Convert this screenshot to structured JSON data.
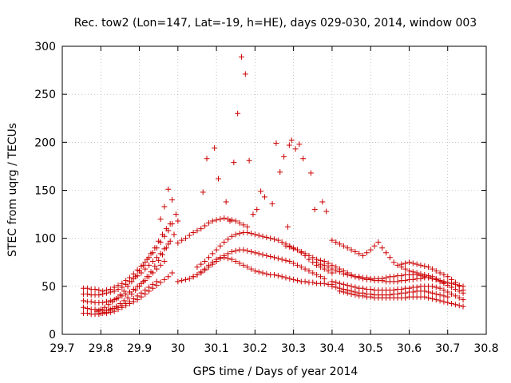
{
  "chart_data": {
    "type": "scatter",
    "title": "Rec. tow2 (Lon=147, Lat=-19, h=HE), days 029-030, 2014, window 003",
    "xlabel": "GPS time / Days of year 2014",
    "ylabel": "STEC from uqrg / TECUs",
    "xlim": [
      29.7,
      30.8
    ],
    "ylim": [
      0,
      300
    ],
    "x_ticks": [
      29.7,
      29.8,
      29.9,
      30,
      30.1,
      30.2,
      30.3,
      30.4,
      30.5,
      30.6,
      30.7,
      30.8
    ],
    "x_tick_labels": [
      "29.7",
      "29.8",
      "29.9",
      "30",
      "30.1",
      "30.2",
      "30.3",
      "30.4",
      "30.5",
      "30.6",
      "30.7",
      "30.8"
    ],
    "y_ticks": [
      0,
      50,
      100,
      150,
      200,
      250,
      300
    ],
    "y_tick_labels": [
      "0",
      "50",
      "100",
      "150",
      "200",
      "250",
      "300"
    ],
    "grid": true,
    "marker": "plus",
    "color": "#cc0000",
    "series": [
      {
        "name": "STEC",
        "x": [
          29.755,
          29.765,
          29.775,
          29.785,
          29.795,
          29.805,
          29.815,
          29.825,
          29.835,
          29.845,
          29.855,
          29.865,
          29.875,
          29.885,
          29.895,
          29.905,
          29.915,
          29.925,
          29.935,
          29.945,
          29.955,
          29.965,
          29.975,
          29.985,
          29.755,
          29.765,
          29.775,
          29.785,
          29.795,
          29.805,
          29.815,
          29.825,
          29.835,
          29.845,
          29.855,
          29.865,
          29.875,
          29.885,
          29.895,
          29.905,
          29.915,
          29.925,
          29.935,
          29.945,
          29.955,
          29.965,
          29.975,
          29.755,
          29.765,
          29.775,
          29.785,
          29.795,
          29.805,
          29.815,
          29.825,
          29.835,
          29.845,
          29.855,
          29.865,
          29.875,
          29.885,
          29.895,
          29.905,
          29.915,
          29.925,
          29.935,
          29.945,
          29.955,
          29.965,
          29.755,
          29.765,
          29.775,
          29.785,
          29.795,
          29.805,
          29.815,
          29.825,
          29.835,
          29.845,
          29.855,
          29.865,
          29.875,
          29.885,
          29.895,
          29.905,
          29.915,
          29.925,
          29.935,
          29.945,
          29.755,
          29.765,
          29.775,
          29.785,
          29.795,
          29.805,
          29.815,
          29.825,
          29.835,
          29.845,
          29.855,
          29.865,
          29.875,
          29.885,
          29.895,
          29.905,
          29.915,
          29.925,
          29.935,
          29.945,
          29.955,
          29.965,
          29.975,
          29.985,
          29.79,
          29.8,
          29.81,
          29.82,
          29.83,
          29.84,
          29.85,
          29.86,
          29.87,
          29.88,
          29.89,
          29.9,
          29.91,
          29.92,
          29.93,
          29.94,
          29.95,
          29.96,
          29.97,
          29.98,
          29.8,
          29.81,
          29.82,
          29.83,
          29.84,
          29.85,
          29.86,
          29.87,
          29.88,
          29.89,
          29.9,
          29.91,
          29.92,
          29.93,
          29.94,
          29.95,
          29.96,
          29.97,
          29.98,
          29.99,
          29.955,
          29.965,
          29.975,
          29.985,
          29.995,
          30.0,
          30.0,
          30.01,
          30.02,
          30.03,
          30.04,
          30.05,
          30.06,
          30.07,
          30.08,
          30.09,
          30.1,
          30.11,
          30.12,
          30.13,
          30.14,
          30.15,
          30.16,
          30.17,
          30.18,
          30.19,
          30.2,
          30.21,
          30.22,
          30.23,
          30.24,
          30.25,
          30.26,
          30.27,
          30.28,
          30.29,
          30.3,
          30.31,
          30.32,
          30.33,
          30.34,
          30.35,
          30.36,
          30.37,
          30.38,
          30.39,
          30.4,
          30.04,
          30.05,
          30.06,
          30.07,
          30.08,
          30.09,
          30.1,
          30.11,
          30.12,
          30.13,
          30.14,
          30.15,
          30.16,
          30.17,
          30.18,
          30.19,
          30.2,
          30.21,
          30.22,
          30.23,
          30.24,
          30.25,
          30.26,
          30.27,
          30.28,
          30.29,
          30.3,
          30.31,
          30.32,
          30.33,
          30.34,
          30.35,
          30.36,
          30.37,
          30.38,
          30.05,
          30.06,
          30.07,
          30.08,
          30.09,
          30.1,
          30.11,
          30.12,
          30.13,
          30.14,
          30.15,
          30.16,
          30.17,
          30.18,
          30.19,
          30.2,
          30.21,
          30.22,
          30.23,
          30.24,
          30.25,
          30.26,
          30.27,
          30.28,
          30.29,
          30.3,
          30.31,
          30.32,
          30.33,
          30.34,
          30.35,
          30.36,
          30.37,
          30.38,
          30.39,
          30.4,
          30.0,
          30.01,
          30.02,
          30.03,
          30.04,
          30.05,
          30.06,
          30.07,
          30.08,
          30.09,
          30.1,
          30.11,
          30.12,
          30.13,
          30.14,
          30.15,
          30.16,
          30.17,
          30.18,
          30.065,
          30.075,
          30.095,
          30.105,
          30.125,
          30.135,
          30.145,
          30.155,
          30.165,
          30.175,
          30.185,
          30.195,
          30.205,
          30.215,
          30.225,
          30.245,
          30.255,
          30.265,
          30.275,
          30.285,
          30.289,
          30.295,
          30.305,
          30.315,
          30.325,
          30.345,
          30.355,
          30.375,
          30.385,
          30.28,
          30.29,
          30.3,
          30.31,
          30.32,
          30.33,
          30.34,
          30.35,
          30.36,
          30.37,
          30.38,
          30.39,
          30.4,
          30.41,
          30.42,
          30.43,
          30.44,
          30.45,
          30.46,
          30.47,
          30.48,
          30.49,
          30.5,
          30.51,
          30.52,
          30.53,
          30.54,
          30.55,
          30.56,
          30.57,
          30.58,
          30.59,
          30.6,
          30.61,
          30.62,
          30.63,
          30.64,
          30.65,
          30.66,
          30.67,
          30.68,
          30.69,
          30.7,
          30.71,
          30.72,
          30.73,
          30.74,
          30.36,
          30.37,
          30.38,
          30.39,
          30.4,
          30.41,
          30.42,
          30.43,
          30.44,
          30.45,
          30.46,
          30.47,
          30.48,
          30.49,
          30.5,
          30.51,
          30.52,
          30.53,
          30.54,
          30.55,
          30.56,
          30.57,
          30.58,
          30.59,
          30.6,
          30.61,
          30.62,
          30.63,
          30.64,
          30.65,
          30.66,
          30.67,
          30.68,
          30.69,
          30.7,
          30.71,
          30.72,
          30.73,
          30.74,
          30.4,
          30.41,
          30.42,
          30.43,
          30.44,
          30.45,
          30.46,
          30.47,
          30.48,
          30.49,
          30.5,
          30.51,
          30.52,
          30.53,
          30.54,
          30.55,
          30.56,
          30.57,
          30.58,
          30.59,
          30.6,
          30.61,
          30.62,
          30.63,
          30.64,
          30.65,
          30.66,
          30.67,
          30.68,
          30.69,
          30.7,
          30.71,
          30.72,
          30.73,
          30.74,
          30.4,
          30.41,
          30.42,
          30.43,
          30.44,
          30.45,
          30.46,
          30.47,
          30.48,
          30.49,
          30.5,
          30.51,
          30.52,
          30.53,
          30.54,
          30.55,
          30.56,
          30.57,
          30.58,
          30.59,
          30.6,
          30.61,
          30.62,
          30.63,
          30.64,
          30.65,
          30.66,
          30.67,
          30.68,
          30.69,
          30.7,
          30.42,
          30.43,
          30.44,
          30.45,
          30.46,
          30.47,
          30.48,
          30.49,
          30.5,
          30.51,
          30.52,
          30.53,
          30.54,
          30.55,
          30.56,
          30.57,
          30.58,
          30.59,
          30.6,
          30.61,
          30.62,
          30.63,
          30.64,
          30.65,
          30.66,
          30.67,
          30.68,
          30.69,
          30.7,
          30.71,
          30.72,
          30.73,
          30.74,
          30.58,
          30.59,
          30.6,
          30.61,
          30.62,
          30.63,
          30.64,
          30.65,
          30.66,
          30.67,
          30.68,
          30.69,
          30.7,
          30.71,
          30.72,
          30.73,
          30.74,
          30.4,
          30.41,
          30.42,
          30.43,
          30.44,
          30.45,
          30.46,
          30.47,
          30.48,
          30.49,
          30.5,
          30.51,
          30.52,
          30.53,
          30.54,
          30.55,
          30.56,
          30.57,
          30.58,
          30.59,
          30.6,
          30.61,
          30.62,
          30.63,
          30.64,
          30.65,
          30.66,
          30.67,
          30.68,
          30.69
        ],
        "y": [
          48,
          48,
          47,
          47,
          46,
          45,
          46,
          47,
          49,
          51,
          53,
          56,
          59,
          63,
          67,
          71,
          75,
          80,
          85,
          90,
          96,
          102,
          108,
          115,
          42,
          42,
          41,
          41,
          41,
          42,
          43,
          44,
          45,
          47,
          49,
          52,
          55,
          58,
          61,
          64,
          68,
          72,
          76,
          80,
          84,
          89,
          94,
          35,
          34,
          34,
          33,
          33,
          33,
          34,
          35,
          36,
          38,
          40,
          42,
          44,
          47,
          50,
          53,
          56,
          60,
          64,
          68,
          72,
          76,
          28,
          27,
          26,
          26,
          25,
          25,
          25,
          26,
          27,
          28,
          30,
          32,
          34,
          37,
          40,
          43,
          46,
          49,
          52,
          55,
          22,
          22,
          21,
          21,
          21,
          22,
          22,
          23,
          24,
          26,
          28,
          30,
          32,
          34,
          36,
          39,
          42,
          45,
          48,
          51,
          54,
          57,
          60,
          64,
          24,
          26,
          28,
          31,
          34,
          37,
          41,
          45,
          50,
          55,
          60,
          66,
          72,
          78,
          84,
          90,
          97,
          104,
          110,
          115,
          22,
          23,
          25,
          27,
          29,
          32,
          35,
          38,
          42,
          46,
          50,
          55,
          60,
          65,
          71,
          77,
          83,
          90,
          97,
          104,
          120,
          133,
          151,
          140,
          125,
          118,
          55,
          56,
          57,
          58,
          60,
          62,
          65,
          68,
          72,
          75,
          78,
          80,
          80,
          79,
          78,
          76,
          74,
          72,
          70,
          68,
          66,
          65,
          64,
          63,
          62,
          62,
          61,
          60,
          59,
          58,
          57,
          56,
          55,
          55,
          54,
          54,
          53,
          53,
          53,
          52,
          52,
          60,
          62,
          64,
          67,
          70,
          73,
          76,
          79,
          82,
          84,
          86,
          87,
          88,
          88,
          87,
          86,
          85,
          84,
          83,
          82,
          81,
          80,
          79,
          78,
          77,
          76,
          74,
          72,
          70,
          68,
          66,
          64,
          62,
          60,
          58,
          70,
          73,
          76,
          80,
          84,
          88,
          92,
          96,
          99,
          102,
          104,
          105,
          106,
          106,
          105,
          104,
          103,
          102,
          101,
          100,
          99,
          98,
          96,
          94,
          92,
          90,
          88,
          85,
          82,
          78,
          75,
          72,
          70,
          68,
          66,
          64,
          95,
          98,
          100,
          103,
          106,
          108,
          110,
          113,
          116,
          118,
          119,
          120,
          121,
          120,
          119,
          118,
          116,
          114,
          112,
          148,
          183,
          194,
          162,
          138,
          118,
          179,
          230,
          289,
          271,
          181,
          125,
          130,
          149,
          143,
          136,
          199,
          169,
          185,
          112,
          197,
          202,
          193,
          198,
          183,
          168,
          130,
          138,
          128,
          92,
          91,
          89,
          88,
          86,
          84,
          82,
          80,
          78,
          77,
          76,
          74,
          72,
          70,
          68,
          66,
          64,
          62,
          60,
          60,
          59,
          59,
          58,
          58,
          58,
          58,
          59,
          60,
          60,
          61,
          61,
          62,
          62,
          62,
          62,
          61,
          60,
          59,
          58,
          57,
          56,
          55,
          54,
          53,
          52,
          51,
          50,
          75,
          73,
          72,
          70,
          68,
          66,
          65,
          63,
          62,
          61,
          60,
          59,
          58,
          57,
          57,
          56,
          56,
          56,
          55,
          55,
          55,
          55,
          56,
          56,
          57,
          57,
          58,
          58,
          59,
          59,
          58,
          57,
          55,
          53,
          51,
          49,
          47,
          45,
          43,
          55,
          54,
          53,
          52,
          51,
          50,
          49,
          48,
          48,
          47,
          47,
          46,
          46,
          46,
          46,
          46,
          46,
          47,
          47,
          48,
          48,
          49,
          49,
          50,
          50,
          50,
          50,
          49,
          48,
          46,
          44,
          42,
          40,
          38,
          36,
          50,
          49,
          48,
          47,
          46,
          45,
          44,
          43,
          43,
          42,
          42,
          41,
          41,
          41,
          41,
          41,
          42,
          42,
          43,
          43,
          44,
          44,
          45,
          45,
          45,
          44,
          43,
          42,
          41,
          40,
          39,
          45,
          44,
          43,
          42,
          41,
          40,
          40,
          39,
          39,
          38,
          38,
          38,
          38,
          38,
          38,
          38,
          38,
          38,
          39,
          39,
          39,
          39,
          39,
          38,
          37,
          36,
          35,
          34,
          33,
          32,
          31,
          30,
          29,
          73,
          74,
          75,
          74,
          73,
          72,
          71,
          70,
          68,
          66,
          64,
          62,
          60,
          57,
          54,
          50,
          46,
          98,
          96,
          94,
          92,
          90,
          88,
          86,
          84,
          82,
          85,
          88,
          92,
          96,
          90,
          85,
          80,
          75,
          72,
          70,
          68,
          66,
          65,
          64,
          63,
          62,
          61,
          60,
          58,
          56,
          54
        ]
      }
    ]
  }
}
